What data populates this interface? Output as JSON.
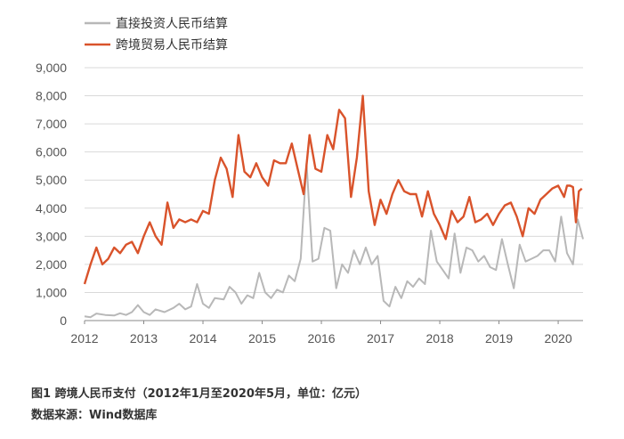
{
  "chart_data": {
    "type": "line",
    "caption": "图1 跨境人民币支付（2012年1月至2020年5月，单位：亿元）",
    "source": "数据来源：Wind数据库",
    "y_ticks": [
      "0",
      "1,000",
      "2,000",
      "3,000",
      "4,000",
      "5,000",
      "6,000",
      "7,000",
      "8,000",
      "9,000"
    ],
    "x_ticks": [
      "2012",
      "2013",
      "2014",
      "2015",
      "2016",
      "2017",
      "2018",
      "2019",
      "2020"
    ],
    "ylim": [
      0,
      9000
    ],
    "xlim": [
      2012.0,
      2020.42
    ],
    "grid": "horizontal",
    "legend_position": "top-left",
    "series": [
      {
        "name": "直接投资人民币结算",
        "color": "#b8b8b8",
        "points": [
          [
            2012.0,
            150
          ],
          [
            2012.1,
            120
          ],
          [
            2012.2,
            250
          ],
          [
            2012.35,
            200
          ],
          [
            2012.5,
            180
          ],
          [
            2012.6,
            260
          ],
          [
            2012.7,
            200
          ],
          [
            2012.8,
            300
          ],
          [
            2012.9,
            550
          ],
          [
            2013.0,
            300
          ],
          [
            2013.1,
            200
          ],
          [
            2013.2,
            400
          ],
          [
            2013.35,
            300
          ],
          [
            2013.5,
            450
          ],
          [
            2013.6,
            600
          ],
          [
            2013.7,
            400
          ],
          [
            2013.8,
            500
          ],
          [
            2013.9,
            1300
          ],
          [
            2014.0,
            600
          ],
          [
            2014.1,
            450
          ],
          [
            2014.2,
            800
          ],
          [
            2014.35,
            750
          ],
          [
            2014.45,
            1200
          ],
          [
            2014.55,
            1000
          ],
          [
            2014.65,
            600
          ],
          [
            2014.75,
            900
          ],
          [
            2014.85,
            800
          ],
          [
            2014.95,
            1700
          ],
          [
            2015.05,
            1000
          ],
          [
            2015.15,
            800
          ],
          [
            2015.25,
            1100
          ],
          [
            2015.35,
            1000
          ],
          [
            2015.45,
            1600
          ],
          [
            2015.55,
            1400
          ],
          [
            2015.65,
            2200
          ],
          [
            2015.75,
            5600
          ],
          [
            2015.85,
            2100
          ],
          [
            2015.95,
            2200
          ],
          [
            2016.05,
            3300
          ],
          [
            2016.15,
            3200
          ],
          [
            2016.25,
            1150
          ],
          [
            2016.35,
            2000
          ],
          [
            2016.45,
            1700
          ],
          [
            2016.55,
            2500
          ],
          [
            2016.65,
            2000
          ],
          [
            2016.75,
            2600
          ],
          [
            2016.85,
            2000
          ],
          [
            2016.95,
            2300
          ],
          [
            2017.05,
            700
          ],
          [
            2017.15,
            500
          ],
          [
            2017.25,
            1200
          ],
          [
            2017.35,
            800
          ],
          [
            2017.45,
            1400
          ],
          [
            2017.55,
            1200
          ],
          [
            2017.65,
            1500
          ],
          [
            2017.75,
            1300
          ],
          [
            2017.85,
            3200
          ],
          [
            2017.95,
            2100
          ],
          [
            2018.05,
            1800
          ],
          [
            2018.15,
            1500
          ],
          [
            2018.25,
            3100
          ],
          [
            2018.35,
            1700
          ],
          [
            2018.45,
            2600
          ],
          [
            2018.55,
            2500
          ],
          [
            2018.65,
            2100
          ],
          [
            2018.75,
            2300
          ],
          [
            2018.85,
            1900
          ],
          [
            2018.95,
            1800
          ],
          [
            2019.05,
            2900
          ],
          [
            2019.15,
            2000
          ],
          [
            2019.25,
            1150
          ],
          [
            2019.35,
            2700
          ],
          [
            2019.45,
            2100
          ],
          [
            2019.55,
            2200
          ],
          [
            2019.65,
            2300
          ],
          [
            2019.75,
            2500
          ],
          [
            2019.85,
            2500
          ],
          [
            2019.95,
            2100
          ],
          [
            2020.05,
            3700
          ],
          [
            2020.15,
            2400
          ],
          [
            2020.25,
            2000
          ],
          [
            2020.33,
            3600
          ],
          [
            2020.42,
            2900
          ]
        ]
      },
      {
        "name": "跨境贸易人民币结算",
        "color": "#d9532b",
        "points": [
          [
            2012.0,
            1300
          ],
          [
            2012.1,
            2000
          ],
          [
            2012.2,
            2600
          ],
          [
            2012.3,
            2000
          ],
          [
            2012.4,
            2200
          ],
          [
            2012.5,
            2600
          ],
          [
            2012.6,
            2400
          ],
          [
            2012.7,
            2700
          ],
          [
            2012.8,
            2800
          ],
          [
            2012.9,
            2400
          ],
          [
            2013.0,
            3000
          ],
          [
            2013.1,
            3500
          ],
          [
            2013.2,
            3000
          ],
          [
            2013.3,
            2700
          ],
          [
            2013.4,
            4200
          ],
          [
            2013.5,
            3300
          ],
          [
            2013.6,
            3600
          ],
          [
            2013.7,
            3500
          ],
          [
            2013.8,
            3600
          ],
          [
            2013.9,
            3500
          ],
          [
            2014.0,
            3900
          ],
          [
            2014.1,
            3800
          ],
          [
            2014.2,
            5000
          ],
          [
            2014.3,
            5800
          ],
          [
            2014.4,
            5400
          ],
          [
            2014.5,
            4400
          ],
          [
            2014.6,
            6600
          ],
          [
            2014.7,
            5300
          ],
          [
            2014.8,
            5100
          ],
          [
            2014.9,
            5600
          ],
          [
            2015.0,
            5100
          ],
          [
            2015.1,
            4800
          ],
          [
            2015.2,
            5700
          ],
          [
            2015.3,
            5600
          ],
          [
            2015.4,
            5600
          ],
          [
            2015.5,
            6300
          ],
          [
            2015.6,
            5400
          ],
          [
            2015.7,
            4500
          ],
          [
            2015.8,
            6600
          ],
          [
            2015.9,
            5400
          ],
          [
            2016.0,
            5300
          ],
          [
            2016.1,
            6600
          ],
          [
            2016.2,
            6100
          ],
          [
            2016.3,
            7500
          ],
          [
            2016.4,
            7200
          ],
          [
            2016.5,
            4400
          ],
          [
            2016.6,
            5800
          ],
          [
            2016.7,
            8000
          ],
          [
            2016.8,
            4600
          ],
          [
            2016.9,
            3400
          ],
          [
            2017.0,
            4300
          ],
          [
            2017.1,
            3800
          ],
          [
            2017.2,
            4500
          ],
          [
            2017.3,
            5000
          ],
          [
            2017.4,
            4600
          ],
          [
            2017.5,
            4500
          ],
          [
            2017.6,
            4500
          ],
          [
            2017.7,
            3700
          ],
          [
            2017.8,
            4600
          ],
          [
            2017.9,
            3800
          ],
          [
            2018.0,
            3400
          ],
          [
            2018.1,
            2900
          ],
          [
            2018.2,
            3900
          ],
          [
            2018.3,
            3500
          ],
          [
            2018.4,
            3700
          ],
          [
            2018.5,
            4400
          ],
          [
            2018.6,
            3500
          ],
          [
            2018.7,
            3600
          ],
          [
            2018.8,
            3800
          ],
          [
            2018.9,
            3400
          ],
          [
            2019.0,
            3800
          ],
          [
            2019.1,
            4100
          ],
          [
            2019.2,
            4200
          ],
          [
            2019.3,
            3700
          ],
          [
            2019.4,
            3000
          ],
          [
            2019.5,
            4000
          ],
          [
            2019.6,
            3800
          ],
          [
            2019.7,
            4300
          ],
          [
            2019.8,
            4500
          ],
          [
            2019.9,
            4700
          ],
          [
            2020.0,
            4800
          ],
          [
            2020.05,
            4600
          ],
          [
            2020.1,
            4400
          ],
          [
            2020.15,
            4800
          ],
          [
            2020.2,
            4800
          ],
          [
            2020.25,
            4750
          ],
          [
            2020.3,
            3500
          ],
          [
            2020.35,
            4600
          ],
          [
            2020.4,
            4700
          ]
        ]
      }
    ]
  }
}
